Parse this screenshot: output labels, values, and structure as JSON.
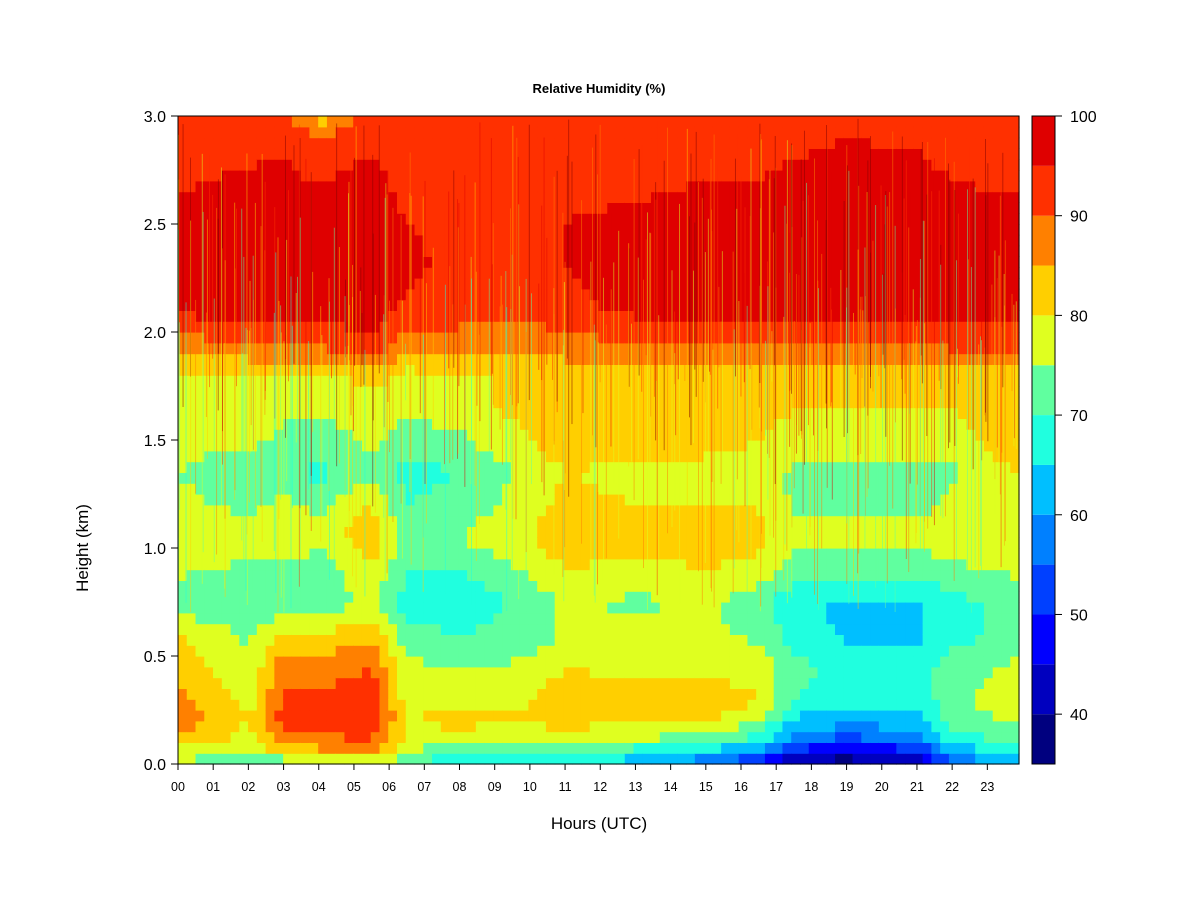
{
  "chart_data": {
    "type": "heatmap",
    "title": "Relative Humidity (%)",
    "xlabel": "Hours (UTC)",
    "ylabel": "Height (km)",
    "x_ticks": [
      "00",
      "01",
      "02",
      "03",
      "04",
      "05",
      "06",
      "07",
      "08",
      "09",
      "10",
      "11",
      "12",
      "13",
      "14",
      "15",
      "16",
      "17",
      "18",
      "19",
      "20",
      "21",
      "22",
      "23"
    ],
    "y_ticks": [
      "0.0",
      "0.5",
      "1.0",
      "1.5",
      "2.0",
      "2.5",
      "3.0"
    ],
    "xlim": [
      0,
      23.9
    ],
    "ylim": [
      0,
      3.0
    ],
    "colorbar": {
      "levels": [
        35,
        40,
        45,
        50,
        55,
        60,
        65,
        70,
        75,
        80,
        85,
        90,
        95,
        100
      ],
      "tick_labels": [
        "40",
        "50",
        "60",
        "70",
        "80",
        "90",
        "100"
      ],
      "colors": [
        "#00007F",
        "#0000BF",
        "#0000FF",
        "#0040FF",
        "#0080FF",
        "#00BFFF",
        "#20FFDF",
        "#60FF9F",
        "#DFFF20",
        "#FFCF00",
        "#FF8000",
        "#FF3000",
        "#DF0000",
        "#7F0000"
      ]
    },
    "heights_km": [
      0.0,
      0.05,
      0.1,
      0.2,
      0.3,
      0.45,
      0.6,
      0.75,
      0.9,
      1.05,
      1.2,
      1.35,
      1.5,
      1.65,
      1.8,
      1.95,
      2.1,
      2.3,
      2.5,
      2.7,
      2.9,
      3.0
    ],
    "hour_profiles": [
      {
        "hour": 0.0,
        "rh": [
          75,
          78,
          82,
          88,
          86,
          84,
          80,
          72,
          76,
          78,
          76,
          75,
          76,
          80,
          80,
          88,
          96,
          98,
          98,
          94,
          92,
          92
        ]
      },
      {
        "hour": 2.0,
        "rh": [
          68,
          72,
          78,
          80,
          78,
          76,
          74,
          70,
          74,
          78,
          74,
          72,
          76,
          78,
          80,
          90,
          97,
          98,
          98,
          96,
          93,
          92
        ]
      },
      {
        "hour": 3.0,
        "rh": [
          70,
          80,
          88,
          92,
          91,
          88,
          80,
          72,
          74,
          80,
          76,
          72,
          74,
          76,
          80,
          92,
          97,
          98,
          98,
          96,
          94,
          92
        ]
      },
      {
        "hour": 4.0,
        "rh": [
          72,
          82,
          88,
          92,
          91,
          88,
          80,
          72,
          72,
          76,
          74,
          68,
          72,
          76,
          78,
          92,
          97,
          98,
          98,
          95,
          90,
          82
        ]
      },
      {
        "hour": 5.5,
        "rh": [
          74,
          84,
          90,
          94,
          93,
          90,
          84,
          76,
          80,
          84,
          80,
          74,
          76,
          78,
          82,
          94,
          97,
          98,
          98,
          97,
          94,
          92
        ]
      },
      {
        "hour": 6.5,
        "rh": [
          72,
          76,
          78,
          80,
          78,
          76,
          72,
          68,
          70,
          72,
          70,
          68,
          72,
          76,
          78,
          88,
          94,
          96,
          95,
          93,
          92,
          91
        ]
      },
      {
        "hour": 8.0,
        "rh": [
          62,
          68,
          75,
          82,
          78,
          75,
          70,
          66,
          70,
          75,
          72,
          70,
          74,
          78,
          80,
          88,
          92,
          94,
          94,
          92,
          91,
          90
        ]
      },
      {
        "hour": 10.0,
        "rh": [
          66,
          70,
          76,
          80,
          80,
          76,
          72,
          72,
          76,
          80,
          78,
          76,
          80,
          82,
          80,
          86,
          92,
          94,
          94,
          93,
          92,
          90
        ]
      },
      {
        "hour": 11.0,
        "rh": [
          68,
          72,
          78,
          82,
          84,
          80,
          76,
          76,
          80,
          84,
          82,
          80,
          84,
          84,
          82,
          88,
          94,
          95,
          95,
          94,
          92,
          91
        ]
      },
      {
        "hour": 13.0,
        "rh": [
          62,
          66,
          74,
          80,
          82,
          78,
          76,
          74,
          78,
          82,
          80,
          78,
          82,
          82,
          80,
          90,
          96,
          97,
          96,
          94,
          92,
          91
        ]
      },
      {
        "hour": 15.0,
        "rh": [
          56,
          62,
          72,
          80,
          84,
          78,
          76,
          76,
          80,
          84,
          80,
          78,
          82,
          82,
          80,
          90,
          96,
          98,
          97,
          95,
          92,
          91
        ]
      },
      {
        "hour": 16.5,
        "rh": [
          50,
          56,
          66,
          76,
          80,
          78,
          74,
          72,
          78,
          82,
          80,
          78,
          80,
          82,
          80,
          90,
          96,
          98,
          98,
          95,
          93,
          92
        ]
      },
      {
        "hour": 17.5,
        "rh": [
          40,
          46,
          56,
          64,
          70,
          72,
          68,
          66,
          72,
          76,
          74,
          74,
          78,
          80,
          80,
          90,
          96,
          98,
          98,
          96,
          94,
          92
        ]
      },
      {
        "hour": 19.0,
        "rh": [
          37,
          42,
          52,
          62,
          66,
          68,
          64,
          64,
          72,
          76,
          74,
          74,
          78,
          80,
          80,
          90,
          96,
          98,
          98,
          97,
          95,
          92
        ]
      },
      {
        "hour": 21.0,
        "rh": [
          40,
          46,
          56,
          62,
          66,
          68,
          64,
          64,
          72,
          76,
          74,
          74,
          78,
          80,
          80,
          90,
          96,
          98,
          98,
          97,
          94,
          92
        ]
      },
      {
        "hour": 22.0,
        "rh": [
          55,
          60,
          66,
          72,
          74,
          72,
          68,
          68,
          74,
          78,
          76,
          74,
          78,
          80,
          80,
          92,
          96,
          98,
          97,
          95,
          92,
          91
        ]
      },
      {
        "hour": 23.9,
        "rh": [
          62,
          66,
          72,
          76,
          78,
          76,
          72,
          72,
          76,
          80,
          78,
          80,
          84,
          84,
          82,
          92,
          97,
          98,
          97,
          94,
          92,
          91
        ]
      }
    ]
  }
}
